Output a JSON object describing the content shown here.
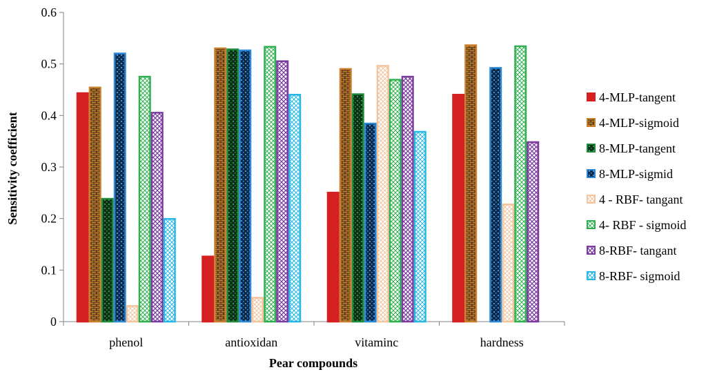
{
  "chart_data": {
    "type": "bar",
    "title": "",
    "xlabel": "Pear compounds",
    "ylabel": "Sensitivity coefficient",
    "ylim": [
      0,
      0.6
    ],
    "yticks": [
      "0",
      "0.1",
      "0.2",
      "0.3",
      "0.4",
      "0.5",
      "0.6"
    ],
    "grid": false,
    "legend_position": "right",
    "categories": [
      "phenol",
      "antioxidan",
      "vitaminc",
      "hardness"
    ],
    "series": [
      {
        "name": "4-MLP-tangent",
        "color": "#d42020",
        "values": [
          0.445,
          0.128,
          0.252,
          0.442
        ],
        "pattern": "solid"
      },
      {
        "name": "4-MLP-sigmoid",
        "color": "#c87f2c",
        "values": [
          0.456,
          0.532,
          0.492,
          0.538
        ],
        "pattern": "brick"
      },
      {
        "name": "8-MLP-tangent",
        "color": "#1e8c3a",
        "values": [
          0.24,
          0.53,
          0.443,
          0.0
        ],
        "pattern": "dark"
      },
      {
        "name": "8-MLP-sigmid",
        "color": "#2a88d8",
        "values": [
          0.522,
          0.528,
          0.386,
          0.494
        ],
        "pattern": "dark"
      },
      {
        "name": "4 - RBF-  tangant",
        "color": "#f3c49e",
        "values": [
          0.032,
          0.048,
          0.498,
          0.229
        ],
        "pattern": "light"
      },
      {
        "name": "4- RBF - sigmoid",
        "color": "#2fb050",
        "values": [
          0.477,
          0.535,
          0.471,
          0.536
        ],
        "pattern": "light"
      },
      {
        "name": "8-RBF- tangant",
        "color": "#7a3aa0",
        "values": [
          0.407,
          0.507,
          0.477,
          0.35
        ],
        "pattern": "light"
      },
      {
        "name": "8-RBF- sigmoid",
        "color": "#27b7e6",
        "values": [
          0.201,
          0.442,
          0.37,
          0.0
        ],
        "pattern": "light"
      }
    ]
  }
}
